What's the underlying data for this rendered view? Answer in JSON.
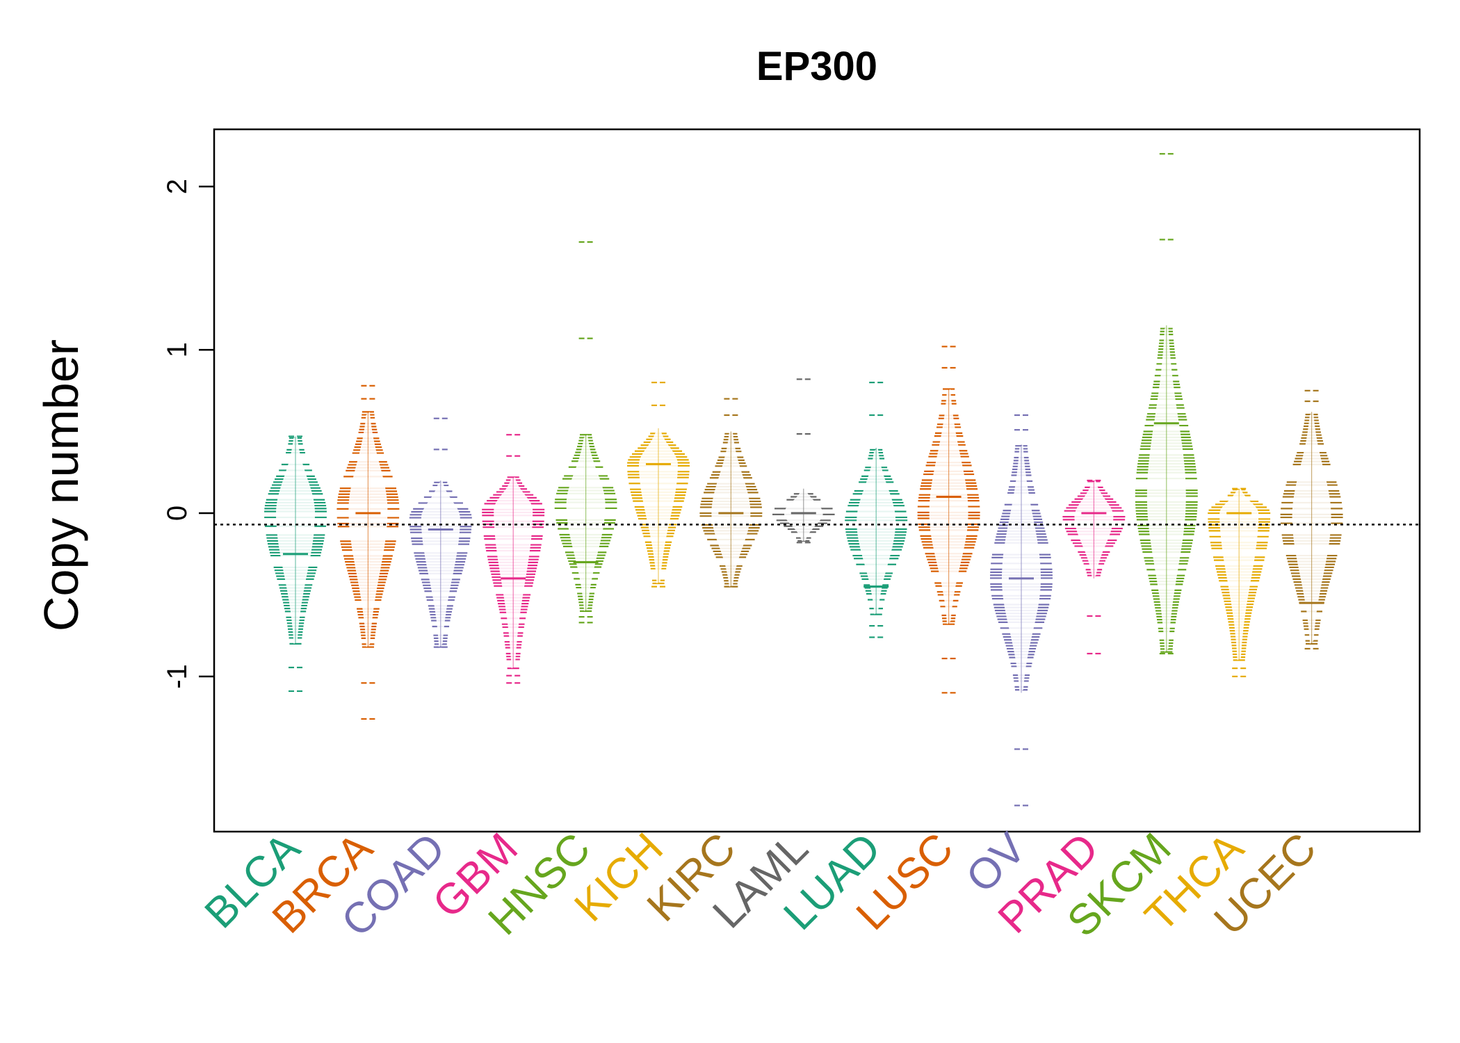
{
  "chart_data": {
    "type": "beanplot",
    "title": "EP300",
    "xlabel": "",
    "ylabel": "Copy number",
    "ylim": [
      -1.95,
      2.35
    ],
    "yticks": [
      -1,
      0,
      1,
      2
    ],
    "ytick_labels": [
      "-1",
      "0",
      "1",
      "2"
    ],
    "reference_line": -0.07,
    "categories": [
      "BLCA",
      "BRCA",
      "COAD",
      "GBM",
      "HNSC",
      "KICH",
      "KIRC",
      "LAML",
      "LUAD",
      "LUSC",
      "OV",
      "PRAD",
      "SKCM",
      "THCA",
      "UCEC"
    ],
    "colors": [
      "#1b9e77",
      "#d95f02",
      "#7570b3",
      "#e7298a",
      "#66a61e",
      "#e6ab02",
      "#a6761d",
      "#666666",
      "#1b9e77",
      "#d95f02",
      "#7570b3",
      "#e7298a",
      "#66a61e",
      "#e6ab02",
      "#a6761d"
    ],
    "series": [
      {
        "category": "BLCA",
        "center": 0.0,
        "q_low": -0.8,
        "q_high": 0.47,
        "min": -1.09,
        "max": 0.47,
        "median": -0.25
      },
      {
        "category": "BRCA",
        "center": 0.02,
        "q_low": -0.82,
        "q_high": 0.62,
        "min": -1.26,
        "max": 0.78,
        "median": 0.0
      },
      {
        "category": "COAD",
        "center": -0.03,
        "q_low": -0.82,
        "q_high": 0.2,
        "min": -0.82,
        "max": 0.58,
        "median": -0.1
      },
      {
        "category": "GBM",
        "center": 0.02,
        "q_low": -0.95,
        "q_high": 0.22,
        "min": -1.04,
        "max": 0.48,
        "median": -0.4
      },
      {
        "category": "HNSC",
        "center": 0.05,
        "q_low": -0.6,
        "q_high": 0.48,
        "min": -0.67,
        "max": 1.66,
        "median": -0.3
      },
      {
        "category": "KICH",
        "center": 0.3,
        "q_low": -0.43,
        "q_high": 0.52,
        "min": -0.45,
        "max": 0.8,
        "median": 0.3
      },
      {
        "category": "KIRC",
        "center": 0.0,
        "q_low": -0.45,
        "q_high": 0.5,
        "min": -0.45,
        "max": 0.7,
        "median": 0.0
      },
      {
        "category": "LAML",
        "center": 0.0,
        "q_low": -0.17,
        "q_high": 0.15,
        "min": -0.18,
        "max": 0.82,
        "median": 0.0
      },
      {
        "category": "LUAD",
        "center": -0.05,
        "q_low": -0.62,
        "q_high": 0.4,
        "min": -0.76,
        "max": 0.8,
        "median": -0.45
      },
      {
        "category": "LUSC",
        "center": 0.0,
        "q_low": -0.68,
        "q_high": 0.76,
        "min": -1.1,
        "max": 1.02,
        "median": 0.1
      },
      {
        "category": "OV",
        "center": -0.4,
        "q_low": -1.1,
        "q_high": 0.42,
        "min": -1.79,
        "max": 0.6,
        "median": -0.4
      },
      {
        "category": "PRAD",
        "center": -0.02,
        "q_low": -0.4,
        "q_high": 0.2,
        "min": -0.86,
        "max": 0.2,
        "median": 0.0
      },
      {
        "category": "SKCM",
        "center": 0.1,
        "q_low": -0.85,
        "q_high": 1.15,
        "min": -0.86,
        "max": 2.2,
        "median": 0.55
      },
      {
        "category": "THCA",
        "center": 0.0,
        "q_low": -0.9,
        "q_high": 0.15,
        "min": -1.0,
        "max": 0.15,
        "median": 0.0
      },
      {
        "category": "UCEC",
        "center": -0.02,
        "q_low": -0.8,
        "q_high": 0.62,
        "min": -0.83,
        "max": 0.75,
        "median": -0.55
      }
    ]
  }
}
